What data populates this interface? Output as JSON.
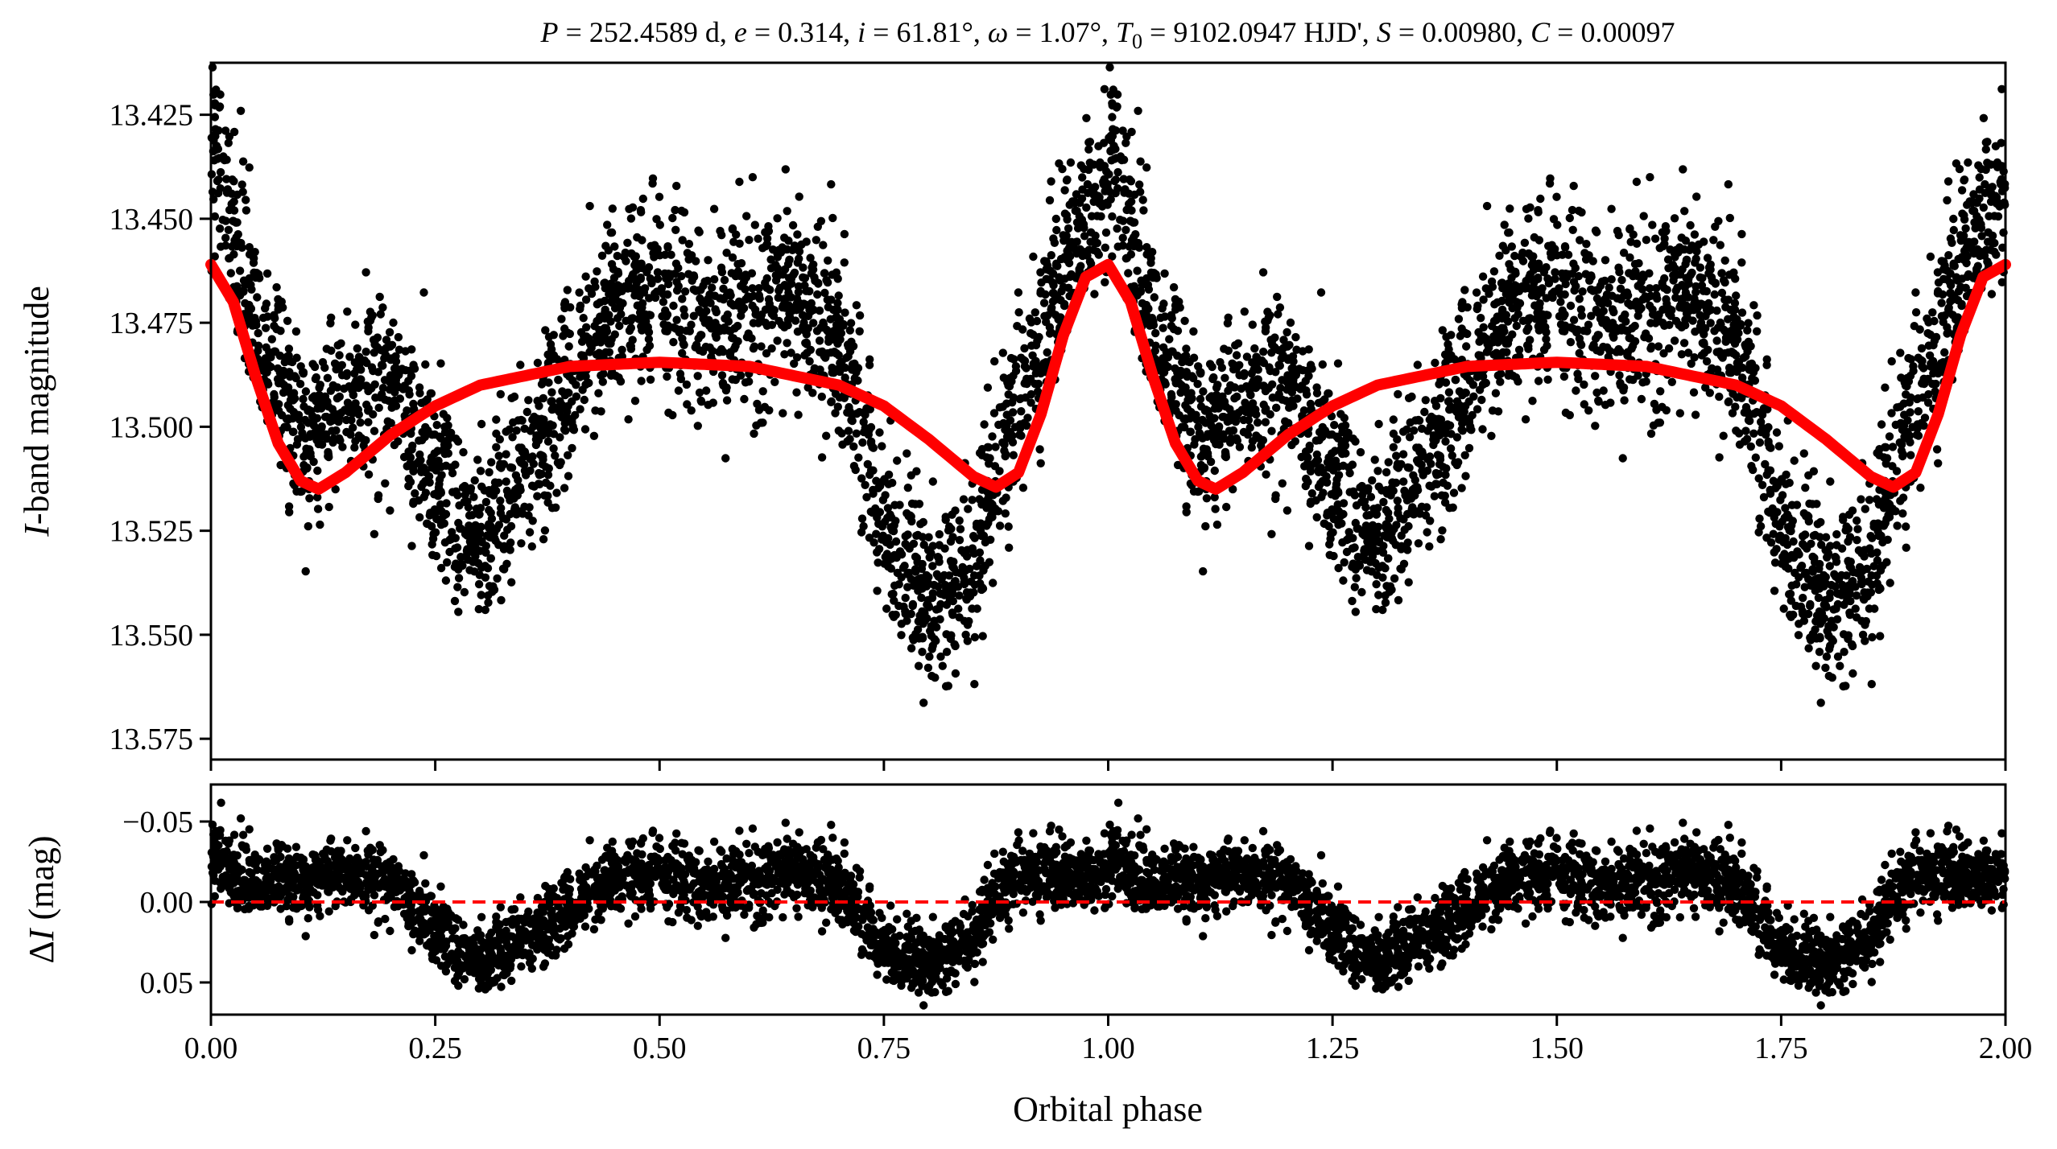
{
  "chart_data": [
    {
      "type": "scatter",
      "panel": "top",
      "title": "P = 252.4589 d, e = 0.314, i = 61.81°, ω = 1.07°, T0 = 9102.0947 HJD', S = 0.00980, C = 0.00097",
      "title_segments": [
        {
          "t": "P",
          "i": true
        },
        {
          "t": " = 252.4589 d, "
        },
        {
          "t": "e",
          "i": true
        },
        {
          "t": " = 0.314, "
        },
        {
          "t": "i",
          "i": true
        },
        {
          "t": " = 61.81°, "
        },
        {
          "t": "ω",
          "i": true
        },
        {
          "t": " = 1.07°, "
        },
        {
          "t": "T",
          "i": true
        },
        {
          "t": "0",
          "sub": true
        },
        {
          "t": " = 9102.0947 HJD', "
        },
        {
          "t": "S",
          "i": true
        },
        {
          "t": " = 0.00980, "
        },
        {
          "t": "C",
          "i": true
        },
        {
          "t": " = 0.00097"
        }
      ],
      "ylabel": "I-band magnitude",
      "ylabel_italic": "I",
      "ylabel_rest": "-band magnitude",
      "xlim": [
        0.0,
        2.0
      ],
      "ylim": [
        13.4125,
        13.58
      ],
      "y_inverted": true,
      "yticks": [
        13.425,
        13.45,
        13.475,
        13.5,
        13.525,
        13.55,
        13.575
      ],
      "ytick_labels": [
        "13.425",
        "13.450",
        "13.475",
        "13.500",
        "13.525",
        "13.550",
        "13.575"
      ],
      "grid": false,
      "series": [
        {
          "kind": "points",
          "color": "#000000",
          "anchor_phase": [
            0.0,
            0.05,
            0.1,
            0.15,
            0.2,
            0.25,
            0.3,
            0.35,
            0.4,
            0.45,
            0.5,
            0.55,
            0.6,
            0.65,
            0.7,
            0.75,
            0.8,
            0.85,
            0.9,
            0.95,
            1.0
          ],
          "anchor_mag": [
            13.432,
            13.475,
            13.502,
            13.493,
            13.49,
            13.51,
            13.526,
            13.51,
            13.488,
            13.47,
            13.468,
            13.474,
            13.472,
            13.47,
            13.48,
            13.522,
            13.543,
            13.532,
            13.492,
            13.462,
            13.44
          ],
          "scatter_mag": 0.011
        },
        {
          "kind": "model",
          "color": "#ff0000",
          "x": [
            0.0,
            0.025,
            0.05,
            0.075,
            0.1,
            0.12,
            0.15,
            0.2,
            0.25,
            0.3,
            0.4,
            0.5,
            0.6,
            0.7,
            0.75,
            0.8,
            0.85,
            0.875,
            0.9,
            0.925,
            0.95,
            0.975,
            1.0,
            1.025,
            1.05,
            1.075,
            1.1,
            1.12,
            1.15,
            1.2,
            1.25,
            1.3,
            1.4,
            1.5,
            1.6,
            1.7,
            1.75,
            1.8,
            1.85,
            1.875,
            1.9,
            1.925,
            1.95,
            1.975,
            2.0
          ],
          "y": [
            13.461,
            13.47,
            13.488,
            13.504,
            13.513,
            13.515,
            13.511,
            13.502,
            13.495,
            13.49,
            13.4855,
            13.4845,
            13.4855,
            13.49,
            13.495,
            13.503,
            13.512,
            13.5145,
            13.511,
            13.497,
            13.478,
            13.464,
            13.461,
            13.47,
            13.488,
            13.504,
            13.513,
            13.515,
            13.511,
            13.502,
            13.495,
            13.49,
            13.4855,
            13.4845,
            13.4855,
            13.49,
            13.495,
            13.503,
            13.512,
            13.5145,
            13.511,
            13.497,
            13.478,
            13.464,
            13.461
          ]
        }
      ]
    },
    {
      "type": "scatter",
      "panel": "bottom",
      "xlabel": "Orbital phase",
      "ylabel": "ΔI (mag)",
      "ylabel_prefix": "Δ",
      "ylabel_italic": "I",
      "ylabel_rest": " (mag)",
      "xlim": [
        0.0,
        2.0
      ],
      "ylim": [
        -0.073,
        0.07
      ],
      "y_inverted": true,
      "yticks": [
        -0.05,
        0.0,
        0.05
      ],
      "ytick_labels": [
        "−0.05",
        "0.00",
        "0.05"
      ],
      "xticks": [
        0.0,
        0.25,
        0.5,
        0.75,
        1.0,
        1.25,
        1.5,
        1.75,
        2.0
      ],
      "xtick_labels": [
        "0.00",
        "0.25",
        "0.50",
        "0.75",
        "1.00",
        "1.25",
        "1.50",
        "1.75",
        "2.00"
      ],
      "grid": false,
      "series": [
        {
          "kind": "residual_points",
          "color": "#000000",
          "description_of_values": "observed minus model, I-band magnitude",
          "scatter_mag": 0.011
        },
        {
          "kind": "zero_line",
          "color": "#ff0000",
          "y": 0.0,
          "style": "dashed"
        }
      ]
    }
  ]
}
